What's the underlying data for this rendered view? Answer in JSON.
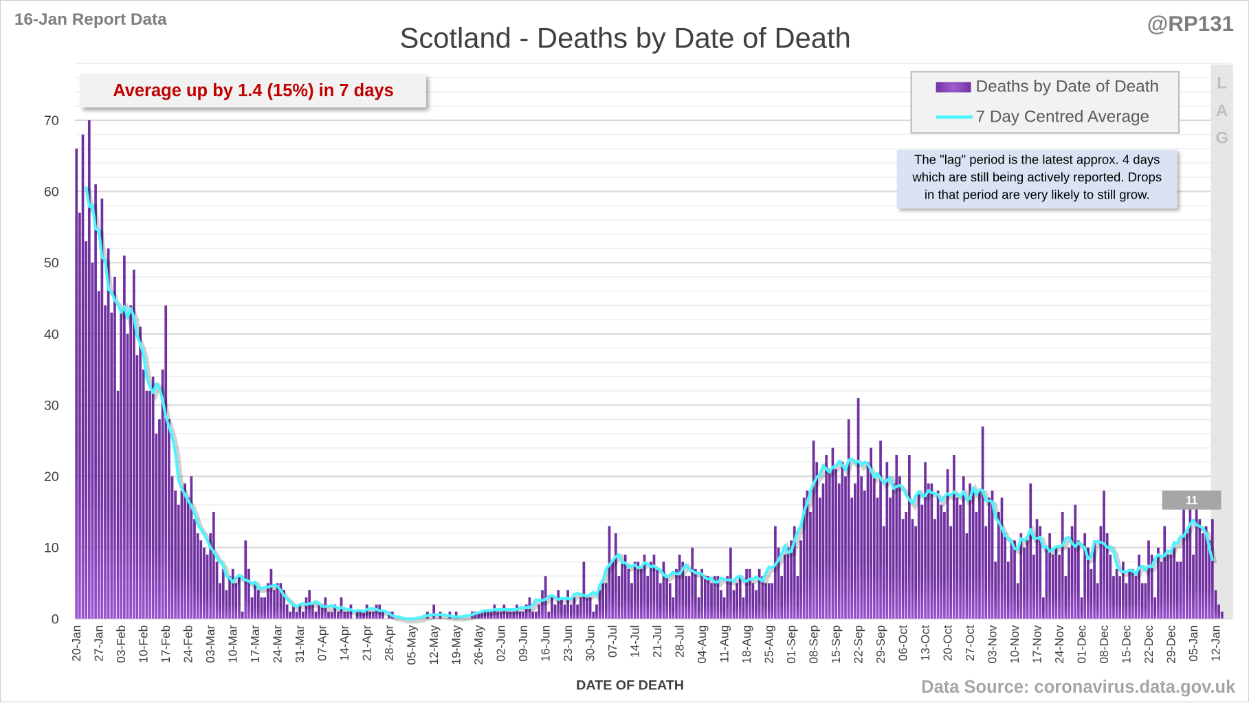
{
  "header": {
    "report_label": "16-Jan Report Data",
    "handle": "@RP131",
    "title": "Scotland - Deaths by Date of Death"
  },
  "banner": {
    "text": "Average up by 1.4 (15%) in 7 days"
  },
  "legend": {
    "bars": "Deaths by Date of Death",
    "line": "7 Day Centred Average"
  },
  "lag_note": {
    "line1": "The \"lag\" period is the latest approx. 4 days",
    "line2": "which are still being actively reported.  Drops",
    "line3": "in that period are very likely to still grow."
  },
  "lag_letters": [
    "L",
    "A",
    "G"
  ],
  "callout": {
    "text": "11"
  },
  "footer": {
    "source": "Data Source: coronavirus.data.gov.uk"
  },
  "colors": {
    "bar": "#7030a0",
    "bar_light": "#9a50d0",
    "line": "#4df4ff",
    "lag_shade": "#e6e6e6"
  },
  "chart_data": {
    "type": "bar",
    "title": "Scotland - Deaths by Date of Death",
    "xlabel": "DATE OF DEATH",
    "ylabel": "",
    "ylim": [
      0,
      70
    ],
    "yticks": [
      0,
      10,
      20,
      30,
      40,
      50,
      60,
      70
    ],
    "grid": true,
    "legend_position": "top-right",
    "start_date": "20-Jan",
    "lag_days": 4,
    "xtick_labels": [
      "20-Jan",
      "27-Jan",
      "03-Feb",
      "10-Feb",
      "17-Feb",
      "24-Feb",
      "03-Mar",
      "10-Mar",
      "17-Mar",
      "24-Mar",
      "31-Mar",
      "07-Apr",
      "14-Apr",
      "21-Apr",
      "28-Apr",
      "05-May",
      "12-May",
      "19-May",
      "26-May",
      "02-Jun",
      "09-Jun",
      "16-Jun",
      "23-Jun",
      "30-Jun",
      "07-Jul",
      "14-Jul",
      "21-Jul",
      "28-Jul",
      "04-Aug",
      "11-Aug",
      "18-Aug",
      "25-Aug",
      "01-Sep",
      "08-Sep",
      "15-Sep",
      "22-Sep",
      "29-Sep",
      "06-Oct",
      "13-Oct",
      "20-Oct",
      "27-Oct",
      "03-Nov",
      "10-Nov",
      "17-Nov",
      "24-Nov",
      "01-Dec",
      "08-Dec",
      "15-Dec",
      "22-Dec",
      "29-Dec",
      "05-Jan",
      "12-Jan"
    ],
    "series": [
      {
        "name": "Deaths by Date of Death",
        "type": "bar",
        "values": [
          66,
          57,
          68,
          53,
          70,
          50,
          61,
          46,
          59,
          44,
          52,
          43,
          48,
          32,
          43,
          51,
          40,
          44,
          49,
          37,
          41,
          35,
          32,
          32,
          34,
          26,
          28,
          35,
          44,
          28,
          20,
          18,
          16,
          18,
          19,
          17,
          20,
          14,
          12,
          11,
          10,
          9,
          12,
          15,
          8,
          5,
          7,
          4,
          6,
          7,
          5,
          6,
          1,
          11,
          7,
          3,
          5,
          4,
          3,
          3,
          5,
          7,
          4,
          5,
          5,
          4,
          2,
          1,
          2,
          1,
          2,
          1,
          3,
          4,
          2,
          1,
          2,
          2,
          3,
          1,
          1,
          2,
          1,
          3,
          1,
          1,
          2,
          0,
          1,
          1,
          1,
          2,
          1,
          1,
          2,
          2,
          1,
          0,
          1,
          1,
          0,
          0,
          0,
          0,
          0,
          0,
          0,
          0,
          0,
          0,
          1,
          0,
          2,
          0,
          1,
          0,
          0,
          1,
          0,
          1,
          0,
          0,
          0,
          0,
          1,
          1,
          1,
          1,
          1,
          1,
          1,
          2,
          1,
          1,
          2,
          1,
          1,
          1,
          2,
          1,
          1,
          2,
          3,
          1,
          1,
          2,
          4,
          6,
          1,
          3,
          2,
          4,
          3,
          2,
          4,
          2,
          3,
          2,
          3,
          8,
          3,
          3,
          1,
          2,
          4,
          5,
          5,
          13,
          8,
          12,
          6,
          8,
          9,
          7,
          5,
          8,
          8,
          7,
          9,
          6,
          8,
          9,
          7,
          5,
          8,
          6,
          5,
          3,
          7,
          9,
          8,
          6,
          6,
          10,
          7,
          3,
          7,
          6,
          6,
          5,
          6,
          6,
          4,
          3,
          6,
          10,
          4,
          5,
          6,
          3,
          7,
          7,
          5,
          4,
          7,
          6,
          5,
          5,
          5,
          13,
          10,
          6,
          9,
          10,
          11,
          13,
          6,
          11,
          17,
          18,
          15,
          25,
          22,
          17,
          19,
          23,
          21,
          24,
          21,
          19,
          22,
          20,
          28,
          17,
          19,
          31,
          20,
          18,
          22,
          24,
          20,
          17,
          25,
          13,
          22,
          17,
          19,
          23,
          20,
          14,
          15,
          23,
          14,
          13,
          18,
          16,
          22,
          19,
          19,
          14,
          18,
          16,
          15,
          21,
          13,
          23,
          17,
          16,
          20,
          12,
          19,
          18,
          15,
          18,
          27,
          13,
          17,
          18,
          8,
          15,
          17,
          12,
          8,
          11,
          11,
          5,
          12,
          10,
          11,
          19,
          9,
          14,
          13,
          3,
          10,
          12,
          9,
          10,
          9,
          15,
          6,
          10,
          13,
          16,
          11,
          3,
          12,
          10,
          7,
          11,
          5,
          13,
          18,
          12,
          9,
          6,
          7,
          6,
          8,
          5,
          7,
          7,
          6,
          9,
          5,
          5,
          11,
          9,
          3,
          10,
          8,
          13,
          9,
          9,
          10,
          8,
          8,
          18,
          12,
          16,
          9,
          16,
          14,
          12,
          13,
          11,
          14,
          4,
          2,
          1
        ]
      },
      {
        "name": "7 Day Centred Average",
        "type": "line",
        "derived_from": "Deaths by Date of Death",
        "window": 7
      }
    ]
  }
}
